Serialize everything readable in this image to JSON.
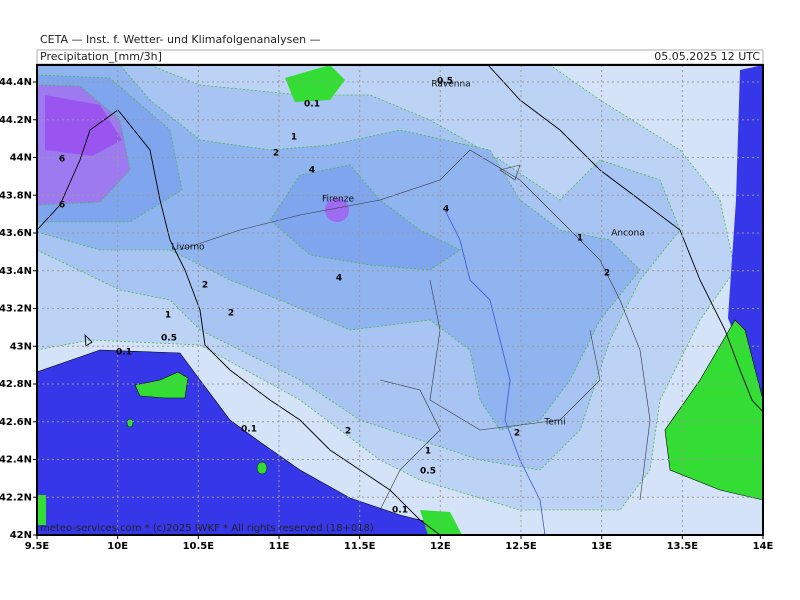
{
  "header": {
    "line1": "CETA — Inst. f. Wetter- und Klimafolgenanalysen —",
    "product": "Precipitation_[mm/3h]",
    "valid": "05.05.2025 12 UTC"
  },
  "map": {
    "lat_labels": [
      "44.4N",
      "44.2N",
      "44N",
      "43.8N",
      "43.6N",
      "43.4N",
      "43.2N",
      "43N",
      "42.8N",
      "42.6N",
      "42.4N",
      "42.2N",
      "42N"
    ],
    "lon_labels": [
      "9.5E",
      "10E",
      "10.5E",
      "11E",
      "11.5E",
      "12E",
      "12.5E",
      "13E",
      "13.5E",
      "14E"
    ],
    "cities": [
      "Ravenna",
      "Firenze",
      "Livorno",
      "Ancona",
      "Terni"
    ],
    "contour_labels": [
      "0.5",
      "0.1",
      "1",
      "2",
      "4",
      "6",
      "6",
      "4",
      "1",
      "2",
      "4",
      "2",
      "2",
      "1",
      "0.5",
      "0.1",
      "0.1",
      "2",
      "2",
      "1",
      "0.5",
      "0.1"
    ],
    "footer": "meteo-services.com * (c)2025 IWKF * All rights reserved (18+018)"
  }
}
